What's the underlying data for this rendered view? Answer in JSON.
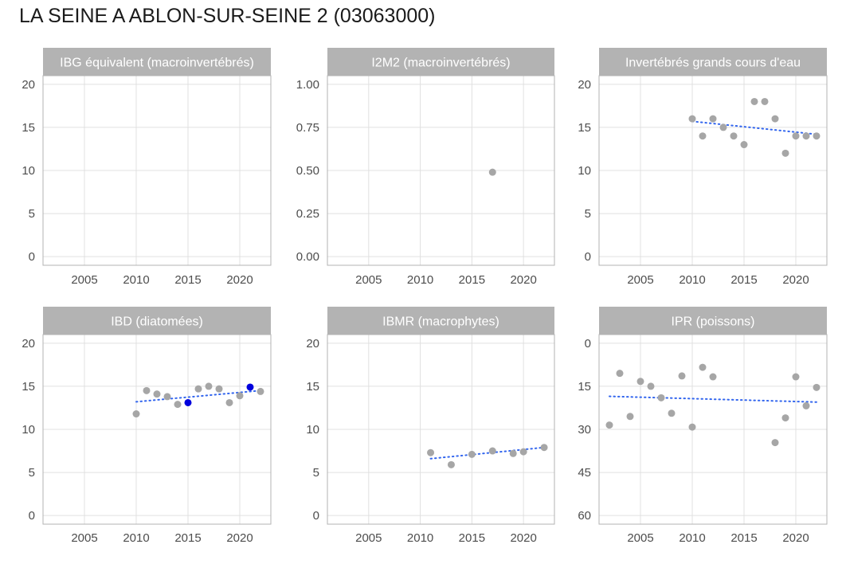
{
  "page_title": "LA SEINE A ABLON-SUR-SEINE 2 (03063000)",
  "colors": {
    "strip_bg": "#b3b3b3",
    "strip_text": "#ffffff",
    "grid": "#e0e0e0",
    "panel_border": "#b3b3b3",
    "point": "#a6a6a6",
    "highlight_point": "#0000dd",
    "trend": "#3366ee",
    "tick_text": "#4d4d4d"
  },
  "chart_data": [
    {
      "type": "scatter",
      "title": "IBG équivalent (macroinvertébrés)",
      "xlim": [
        2001,
        2023
      ],
      "ylim": [
        -1,
        21
      ],
      "y_reversed": false,
      "xticks": [
        2005,
        2010,
        2015,
        2020
      ],
      "yticks": [
        {
          "v": 0,
          "label": "0"
        },
        {
          "v": 5,
          "label": "5"
        },
        {
          "v": 10,
          "label": "10"
        },
        {
          "v": 15,
          "label": "15"
        },
        {
          "v": 20,
          "label": "20"
        }
      ],
      "points": [],
      "highlight": [],
      "trend": null
    },
    {
      "type": "scatter",
      "title": "I2M2 (macroinvertébrés)",
      "xlim": [
        2001,
        2023
      ],
      "ylim": [
        -0.05,
        1.05
      ],
      "y_reversed": false,
      "xticks": [
        2005,
        2010,
        2015,
        2020
      ],
      "yticks": [
        {
          "v": 0,
          "label": "0.00"
        },
        {
          "v": 0.25,
          "label": "0.25"
        },
        {
          "v": 0.5,
          "label": "0.50"
        },
        {
          "v": 0.75,
          "label": "0.75"
        },
        {
          "v": 1,
          "label": "1.00"
        }
      ],
      "points": [
        {
          "x": 2017,
          "y": 0.49
        }
      ],
      "highlight": [],
      "trend": null
    },
    {
      "type": "scatter",
      "title": "Invertébrés grands cours d'eau",
      "xlim": [
        2001,
        2023
      ],
      "ylim": [
        -1,
        21
      ],
      "y_reversed": false,
      "xticks": [
        2005,
        2010,
        2015,
        2020
      ],
      "yticks": [
        {
          "v": 0,
          "label": "0"
        },
        {
          "v": 5,
          "label": "5"
        },
        {
          "v": 10,
          "label": "10"
        },
        {
          "v": 15,
          "label": "15"
        },
        {
          "v": 20,
          "label": "20"
        }
      ],
      "points": [
        {
          "x": 2010,
          "y": 16
        },
        {
          "x": 2011,
          "y": 14
        },
        {
          "x": 2012,
          "y": 16
        },
        {
          "x": 2013,
          "y": 15
        },
        {
          "x": 2014,
          "y": 14
        },
        {
          "x": 2015,
          "y": 13
        },
        {
          "x": 2016,
          "y": 18
        },
        {
          "x": 2017,
          "y": 18
        },
        {
          "x": 2018,
          "y": 16
        },
        {
          "x": 2019,
          "y": 12
        },
        {
          "x": 2020,
          "y": 14
        },
        {
          "x": 2021,
          "y": 14
        },
        {
          "x": 2022,
          "y": 14
        }
      ],
      "highlight": [],
      "trend": {
        "x": [
          2010,
          2022
        ],
        "y": [
          15.7,
          14.2
        ]
      }
    },
    {
      "type": "scatter",
      "title": "IBD (diatomées)",
      "xlim": [
        2001,
        2023
      ],
      "ylim": [
        -1,
        21
      ],
      "y_reversed": false,
      "xticks": [
        2005,
        2010,
        2015,
        2020
      ],
      "yticks": [
        {
          "v": 0,
          "label": "0"
        },
        {
          "v": 5,
          "label": "5"
        },
        {
          "v": 10,
          "label": "10"
        },
        {
          "v": 15,
          "label": "15"
        },
        {
          "v": 20,
          "label": "20"
        }
      ],
      "points": [
        {
          "x": 2010,
          "y": 11.8
        },
        {
          "x": 2011,
          "y": 14.5
        },
        {
          "x": 2012,
          "y": 14.1
        },
        {
          "x": 2013,
          "y": 13.8
        },
        {
          "x": 2014,
          "y": 12.9
        },
        {
          "x": 2016,
          "y": 14.7
        },
        {
          "x": 2017,
          "y": 15.0
        },
        {
          "x": 2018,
          "y": 14.7
        },
        {
          "x": 2019,
          "y": 13.1
        },
        {
          "x": 2020,
          "y": 13.9
        },
        {
          "x": 2022,
          "y": 14.4
        }
      ],
      "highlight": [
        {
          "x": 2015,
          "y": 13.1
        },
        {
          "x": 2021,
          "y": 14.9
        }
      ],
      "trend": {
        "x": [
          2010,
          2022
        ],
        "y": [
          13.2,
          14.5
        ]
      }
    },
    {
      "type": "scatter",
      "title": "IBMR (macrophytes)",
      "xlim": [
        2001,
        2023
      ],
      "ylim": [
        -1,
        21
      ],
      "y_reversed": false,
      "xticks": [
        2005,
        2010,
        2015,
        2020
      ],
      "yticks": [
        {
          "v": 0,
          "label": "0"
        },
        {
          "v": 5,
          "label": "5"
        },
        {
          "v": 10,
          "label": "10"
        },
        {
          "v": 15,
          "label": "15"
        },
        {
          "v": 20,
          "label": "20"
        }
      ],
      "points": [
        {
          "x": 2011,
          "y": 7.3
        },
        {
          "x": 2013,
          "y": 5.9
        },
        {
          "x": 2015,
          "y": 7.1
        },
        {
          "x": 2017,
          "y": 7.5
        },
        {
          "x": 2019,
          "y": 7.2
        },
        {
          "x": 2020,
          "y": 7.4
        },
        {
          "x": 2022,
          "y": 7.9
        }
      ],
      "highlight": [],
      "trend": {
        "x": [
          2011,
          2022
        ],
        "y": [
          6.6,
          7.9
        ]
      }
    },
    {
      "type": "scatter",
      "title": "IPR (poissons)",
      "xlim": [
        2001,
        2023
      ],
      "ylim": [
        -3,
        63
      ],
      "y_reversed": true,
      "xticks": [
        2005,
        2010,
        2015,
        2020
      ],
      "yticks": [
        {
          "v": 0,
          "label": "0"
        },
        {
          "v": 15,
          "label": "15"
        },
        {
          "v": 30,
          "label": "30"
        },
        {
          "v": 45,
          "label": "45"
        },
        {
          "v": 60,
          "label": "60"
        }
      ],
      "points": [
        {
          "x": 2002,
          "y": 28.5
        },
        {
          "x": 2003,
          "y": 10.5
        },
        {
          "x": 2004,
          "y": 25.5
        },
        {
          "x": 2005,
          "y": 13.3
        },
        {
          "x": 2006,
          "y": 15.0
        },
        {
          "x": 2007,
          "y": 19.0
        },
        {
          "x": 2008,
          "y": 24.4
        },
        {
          "x": 2009,
          "y": 11.4
        },
        {
          "x": 2010,
          "y": 29.2
        },
        {
          "x": 2011,
          "y": 8.4
        },
        {
          "x": 2012,
          "y": 11.7
        },
        {
          "x": 2018,
          "y": 34.6
        },
        {
          "x": 2019,
          "y": 26.0
        },
        {
          "x": 2020,
          "y": 11.7
        },
        {
          "x": 2021,
          "y": 21.8
        },
        {
          "x": 2022,
          "y": 15.4
        }
      ],
      "highlight": [],
      "trend": {
        "x": [
          2002,
          2022
        ],
        "y": [
          18.5,
          20.5
        ]
      }
    }
  ]
}
